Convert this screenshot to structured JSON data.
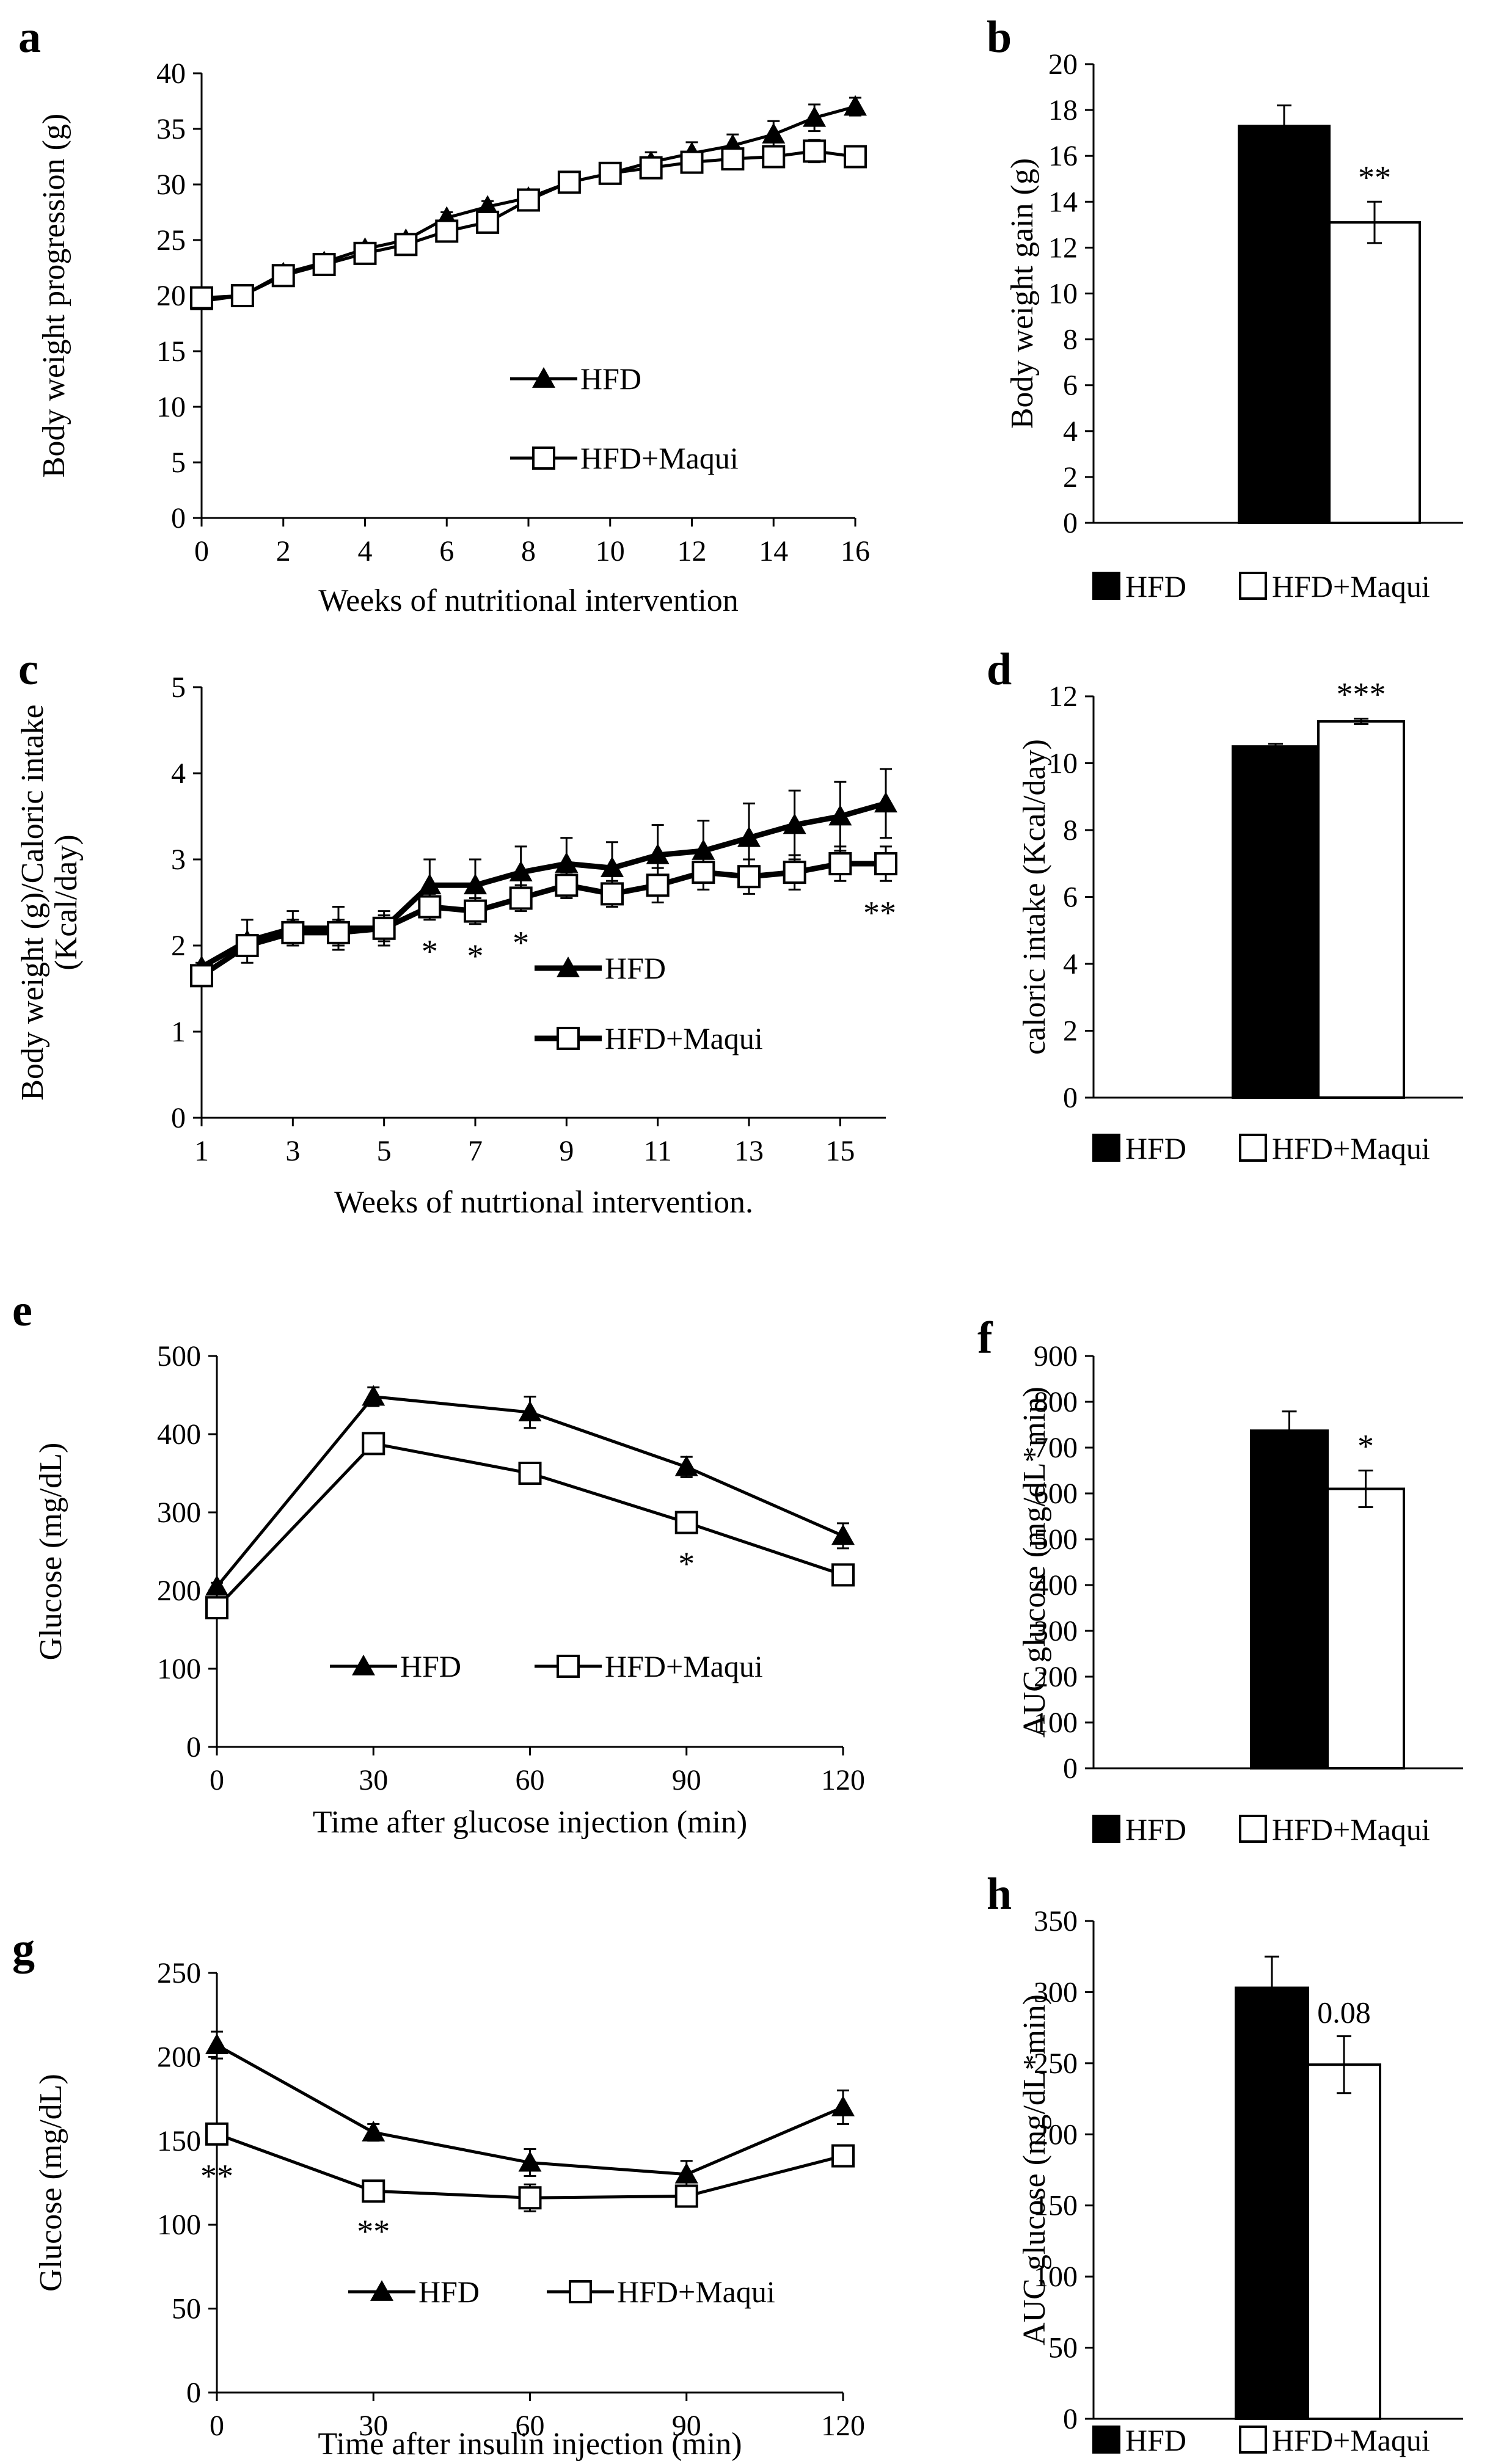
{
  "figure_title": "",
  "chart_data": [
    {
      "panel": "a",
      "type": "line",
      "xlabel": "Weeks of nutritional intervention",
      "ylabel": "Body weight progression (g)",
      "xlim": [
        0,
        16
      ],
      "ylim": [
        0,
        40
      ],
      "xticks": [
        "0",
        "2",
        "4",
        "6",
        "8",
        "10",
        "12",
        "14",
        "16"
      ],
      "yticks": [
        "0",
        "5",
        "10",
        "15",
        "20",
        "25",
        "30",
        "35",
        "40"
      ],
      "legend": "center",
      "series": [
        {
          "name": "HFD",
          "marker": "triangle",
          "x": [
            0,
            1,
            2,
            3,
            4,
            5,
            6,
            7,
            8,
            9,
            10,
            11,
            12,
            13,
            14,
            15,
            16
          ],
          "y": [
            19.5,
            20.0,
            22.0,
            23.0,
            24.2,
            25.0,
            27.0,
            28.0,
            28.8,
            30.2,
            31.0,
            32.0,
            32.8,
            33.5,
            34.5,
            36.0,
            37.0
          ],
          "err": [
            0,
            0,
            0,
            0,
            0,
            0,
            0.5,
            0.5,
            0.6,
            0.7,
            0.8,
            0.9,
            1.0,
            1.0,
            1.2,
            1.2,
            0.8
          ]
        },
        {
          "name": "HFD+Maqui",
          "marker": "square",
          "x": [
            0,
            1,
            2,
            3,
            4,
            5,
            6,
            7,
            8,
            9,
            10,
            11,
            12,
            13,
            14,
            15,
            16
          ],
          "y": [
            19.8,
            20.0,
            21.8,
            22.8,
            23.8,
            24.6,
            25.8,
            26.6,
            28.6,
            30.2,
            31.0,
            31.5,
            32.0,
            32.3,
            32.5,
            33.0,
            32.5
          ],
          "err": [
            0,
            0,
            0,
            0,
            0,
            0,
            0.5,
            0.6,
            0.6,
            0.6,
            0.7,
            0.8,
            0.8,
            0.8,
            0.9,
            1.0,
            0.8
          ]
        }
      ],
      "annotations": []
    },
    {
      "panel": "b",
      "type": "bar",
      "ylabel": "Body weight gain (g)",
      "xlabel": "",
      "ylim": [
        0,
        20
      ],
      "yticks": [
        "0",
        "2",
        "4",
        "6",
        "8",
        "10",
        "12",
        "14",
        "16",
        "18",
        "20"
      ],
      "categories": [
        "HFD",
        "HFD+Maqui"
      ],
      "values": [
        17.3,
        13.1
      ],
      "errors": [
        0.9,
        0.9
      ],
      "fills": [
        "#000000",
        "#ffffff"
      ],
      "annotations": [
        {
          "bar": 1,
          "text": "**"
        }
      ],
      "legend": "bottom"
    },
    {
      "panel": "c",
      "type": "line",
      "xlabel": "Weeks of nutrtional intervention.",
      "ylabel_line1": "Body weight (g)/Caloric intake",
      "ylabel_line2": "(Kcal/day)",
      "xlim": [
        1,
        16
      ],
      "ylim": [
        0,
        5
      ],
      "xticks": [
        "1",
        "3",
        "5",
        "7",
        "9",
        "11",
        "13",
        "15"
      ],
      "yticks": [
        "0",
        "1",
        "2",
        "3",
        "4",
        "5"
      ],
      "legend": "center",
      "series": [
        {
          "name": "HFD",
          "marker": "triangle",
          "x": [
            1,
            2,
            3,
            4,
            5,
            6,
            7,
            8,
            9,
            10,
            11,
            12,
            13,
            14,
            15,
            16
          ],
          "y": [
            1.75,
            2.05,
            2.2,
            2.2,
            2.2,
            2.7,
            2.7,
            2.85,
            2.95,
            2.9,
            3.05,
            3.1,
            3.25,
            3.4,
            3.5,
            3.65
          ],
          "err": [
            0.05,
            0.25,
            0.2,
            0.25,
            0.2,
            0.3,
            0.3,
            0.3,
            0.3,
            0.3,
            0.35,
            0.35,
            0.4,
            0.4,
            0.4,
            0.4
          ]
        },
        {
          "name": "HFD+Maqui",
          "marker": "square",
          "x": [
            1,
            2,
            3,
            4,
            5,
            6,
            7,
            8,
            9,
            10,
            11,
            12,
            13,
            14,
            15,
            16
          ],
          "y": [
            1.65,
            2.0,
            2.15,
            2.15,
            2.2,
            2.45,
            2.4,
            2.55,
            2.7,
            2.6,
            2.7,
            2.85,
            2.8,
            2.85,
            2.95,
            2.95
          ],
          "err": [
            0.05,
            0.1,
            0.15,
            0.15,
            0.15,
            0.15,
            0.15,
            0.15,
            0.15,
            0.15,
            0.2,
            0.2,
            0.2,
            0.2,
            0.2,
            0.2
          ]
        }
      ],
      "annotations": [
        {
          "x": 6,
          "text": "*"
        },
        {
          "x": 7,
          "text": "*"
        },
        {
          "x": 8,
          "text": "*"
        },
        {
          "x": 16,
          "text": "**"
        }
      ]
    },
    {
      "panel": "d",
      "type": "bar",
      "ylabel": "caloric intake  (Kcal/day)",
      "xlabel": "",
      "ylim": [
        0,
        12
      ],
      "yticks": [
        "0",
        "2",
        "4",
        "6",
        "8",
        "10",
        "12"
      ],
      "categories": [
        "HFD",
        "HFD+Maqui"
      ],
      "values": [
        10.5,
        11.25
      ],
      "errors": [
        0.08,
        0.08
      ],
      "fills": [
        "#000000",
        "#ffffff"
      ],
      "annotations": [
        {
          "bar": 1,
          "text": "***"
        }
      ],
      "legend": "bottom"
    },
    {
      "panel": "e",
      "type": "line",
      "xlabel": "Time after glucose injection (min)",
      "ylabel": "Glucose (mg/dL)",
      "xlim": [
        0,
        120
      ],
      "ylim": [
        0,
        500
      ],
      "xticks": [
        "0",
        "30",
        "60",
        "90",
        "120"
      ],
      "yticks": [
        "0",
        "100",
        "200",
        "300",
        "400",
        "500"
      ],
      "legend": "lower-center",
      "series": [
        {
          "name": "HFD",
          "marker": "triangle",
          "x": [
            0,
            30,
            60,
            90,
            120
          ],
          "y": [
            205,
            448,
            428,
            358,
            270
          ],
          "err": [
            5,
            12,
            20,
            13,
            16
          ]
        },
        {
          "name": "HFD+Maqui",
          "marker": "square",
          "x": [
            0,
            30,
            60,
            90,
            120
          ],
          "y": [
            178,
            388,
            350,
            287,
            220
          ],
          "err": [
            5,
            12,
            12,
            12,
            8
          ]
        }
      ],
      "annotations": [
        {
          "x": 90,
          "text": "*"
        }
      ]
    },
    {
      "panel": "f",
      "type": "bar",
      "ylabel": "AUC glucose (mg/dL*min)",
      "xlabel": "",
      "ylim": [
        0,
        900
      ],
      "yticks": [
        "0",
        "100",
        "200",
        "300",
        "400",
        "500",
        "600",
        "700",
        "800",
        "900"
      ],
      "categories": [
        "HFD",
        "HFD+Maqui"
      ],
      "values": [
        737,
        610
      ],
      "errors": [
        42,
        40
      ],
      "fills": [
        "#000000",
        "#ffffff"
      ],
      "annotations": [
        {
          "bar": 1,
          "text": "*"
        }
      ],
      "legend": "bottom"
    },
    {
      "panel": "g",
      "type": "line",
      "xlabel": "Time after insulin injection (min)",
      "ylabel": "Glucose (mg/dL)",
      "xlim": [
        0,
        120
      ],
      "ylim": [
        0,
        250
      ],
      "xticks": [
        "0",
        "30",
        "60",
        "90",
        "120"
      ],
      "yticks": [
        "0",
        "50",
        "100",
        "150",
        "200",
        "250"
      ],
      "legend": "lower-center",
      "series": [
        {
          "name": "HFD",
          "marker": "triangle",
          "x": [
            0,
            30,
            60,
            90,
            120
          ],
          "y": [
            207,
            155,
            137,
            130,
            170
          ],
          "err": [
            8,
            5,
            8,
            8,
            10
          ]
        },
        {
          "name": "HFD+Maqui",
          "marker": "square",
          "x": [
            0,
            30,
            60,
            90,
            120
          ],
          "y": [
            154,
            120,
            116,
            117,
            141
          ],
          "err": [
            6,
            5,
            8,
            6,
            6
          ]
        }
      ],
      "annotations": [
        {
          "x": 0,
          "text": "**"
        },
        {
          "x": 30,
          "text": "**"
        }
      ]
    },
    {
      "panel": "h",
      "type": "bar",
      "ylabel": "AUC glucose (mg/dL*min)",
      "xlabel": "",
      "ylim": [
        0,
        350
      ],
      "yticks": [
        "0",
        "50",
        "100",
        "150",
        "200",
        "250",
        "300",
        "350"
      ],
      "categories": [
        "HFD",
        "HFD+Maqui"
      ],
      "values": [
        303,
        249
      ],
      "errors": [
        22,
        20
      ],
      "fills": [
        "#000000",
        "#ffffff"
      ],
      "annotations": [
        {
          "bar": 1,
          "text": "0.08"
        }
      ],
      "legend": "bottom"
    }
  ]
}
